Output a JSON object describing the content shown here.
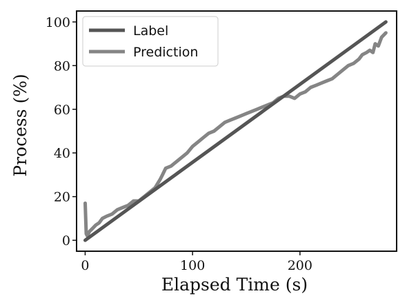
{
  "chart_data": {
    "type": "line",
    "xlabel": "Elapsed Time (s)",
    "ylabel": "Process (%)",
    "xlim": [
      -8,
      290
    ],
    "ylim": [
      -5,
      105
    ],
    "xticks": [
      0,
      100,
      200
    ],
    "yticks": [
      0,
      20,
      40,
      60,
      80,
      100
    ],
    "grid": false,
    "legend_position": "top-left",
    "series": [
      {
        "name": "Label",
        "color": "#555555",
        "x": [
          0,
          280
        ],
        "y": [
          0,
          100
        ]
      },
      {
        "name": "Prediction",
        "color": "#858585",
        "x": [
          0,
          1,
          2,
          4,
          6,
          8,
          10,
          13,
          16,
          20,
          25,
          30,
          35,
          40,
          45,
          50,
          55,
          60,
          65,
          70,
          72,
          75,
          80,
          85,
          90,
          95,
          100,
          105,
          110,
          115,
          120,
          125,
          130,
          135,
          140,
          145,
          150,
          155,
          160,
          165,
          170,
          175,
          180,
          185,
          190,
          195,
          200,
          205,
          210,
          215,
          220,
          225,
          230,
          235,
          240,
          245,
          250,
          255,
          258,
          262,
          265,
          268,
          270,
          273,
          276,
          280
        ],
        "y": [
          17,
          3,
          2,
          4,
          5,
          6,
          7,
          8,
          10,
          11,
          12,
          14,
          15,
          16,
          18,
          18,
          20,
          22,
          24,
          28,
          30,
          33,
          34,
          36,
          38,
          40,
          43,
          45,
          47,
          49,
          50,
          52,
          54,
          55,
          56,
          57,
          58,
          59,
          60,
          61,
          62,
          63,
          65,
          66,
          66,
          65,
          67,
          68,
          70,
          71,
          72,
          73,
          74,
          76,
          78,
          80,
          81,
          83,
          85,
          86,
          87,
          86,
          90,
          89,
          93,
          95
        ]
      }
    ]
  }
}
